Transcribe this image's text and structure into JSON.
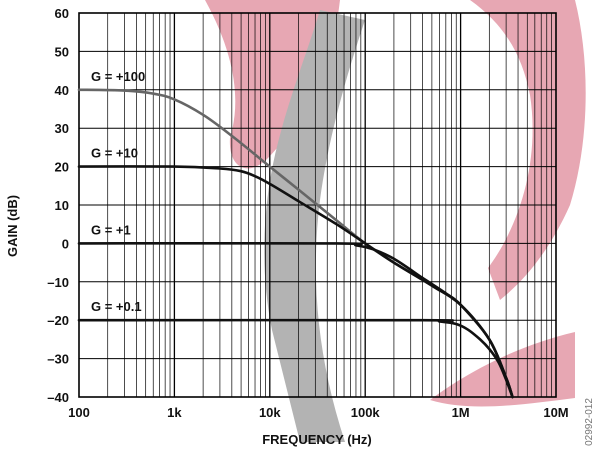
{
  "colors": {
    "watermark_pink": "#e7a7b3",
    "watermark_gray": "#b3b3b3",
    "curve": "#111111",
    "curve_g100_high_freq": "#666666",
    "grid": "#000000"
  },
  "figure_id": "02992-012",
  "chart_data": {
    "type": "line",
    "xlabel": "FREQUENCY (Hz)",
    "ylabel": "GAIN (dB)",
    "x_scale": "log",
    "xlim": [
      100,
      10000000
    ],
    "ylim": [
      -40,
      60
    ],
    "x_ticks": [
      {
        "value": 100,
        "label": "100"
      },
      {
        "value": 1000,
        "label": "1k"
      },
      {
        "value": 10000,
        "label": "10k"
      },
      {
        "value": 100000,
        "label": "100k"
      },
      {
        "value": 1000000,
        "label": "1M"
      },
      {
        "value": 10000000,
        "label": "10M"
      }
    ],
    "y_ticks": [
      {
        "value": 60,
        "label": "60"
      },
      {
        "value": 50,
        "label": "50"
      },
      {
        "value": 40,
        "label": "40"
      },
      {
        "value": 30,
        "label": "30"
      },
      {
        "value": 20,
        "label": "20"
      },
      {
        "value": 10,
        "label": "10"
      },
      {
        "value": 0,
        "label": "0"
      },
      {
        "value": -10,
        "label": "–10"
      },
      {
        "value": -20,
        "label": "–20"
      },
      {
        "value": -30,
        "label": "–30"
      },
      {
        "value": -40,
        "label": "–40"
      }
    ],
    "grid": true,
    "series": [
      {
        "name": "G = +100",
        "points": [
          [
            100,
            40
          ],
          [
            300,
            39.8
          ],
          [
            600,
            39
          ],
          [
            1000,
            37.5
          ],
          [
            2000,
            33.5
          ],
          [
            4000,
            28
          ],
          [
            10000,
            20
          ],
          [
            20000,
            14
          ],
          [
            50000,
            6
          ],
          [
            100000,
            0
          ],
          [
            200000,
            -5
          ],
          [
            500000,
            -11
          ],
          [
            1000000,
            -16
          ],
          [
            2000000,
            -25
          ],
          [
            3000000,
            -35
          ],
          [
            3500000,
            -40
          ]
        ]
      },
      {
        "name": "G = +10",
        "points": [
          [
            100,
            20
          ],
          [
            1000,
            20
          ],
          [
            3000,
            19.5
          ],
          [
            5000,
            18.8
          ],
          [
            7000,
            17.5
          ],
          [
            10000,
            15.5
          ],
          [
            20000,
            11
          ],
          [
            50000,
            5
          ],
          [
            100000,
            0
          ],
          [
            200000,
            -5
          ],
          [
            500000,
            -11
          ],
          [
            1000000,
            -16
          ],
          [
            2000000,
            -25
          ],
          [
            3000000,
            -35
          ],
          [
            3500000,
            -40
          ]
        ]
      },
      {
        "name": "G = +1",
        "points": [
          [
            100,
            0
          ],
          [
            50000,
            0
          ],
          [
            80000,
            -0.5
          ],
          [
            120000,
            -1.5
          ],
          [
            200000,
            -4
          ],
          [
            400000,
            -9
          ],
          [
            700000,
            -13
          ],
          [
            1000000,
            -16
          ],
          [
            2000000,
            -25
          ],
          [
            3000000,
            -35
          ],
          [
            3500000,
            -40
          ]
        ]
      },
      {
        "name": "G = +0.1",
        "points": [
          [
            100,
            -20
          ],
          [
            400000,
            -20
          ],
          [
            600000,
            -20.3
          ],
          [
            900000,
            -21
          ],
          [
            1200000,
            -22.5
          ],
          [
            1600000,
            -25
          ],
          [
            2000000,
            -27.5
          ],
          [
            2500000,
            -31
          ],
          [
            3000000,
            -35.5
          ],
          [
            3500000,
            -40
          ]
        ]
      }
    ]
  }
}
